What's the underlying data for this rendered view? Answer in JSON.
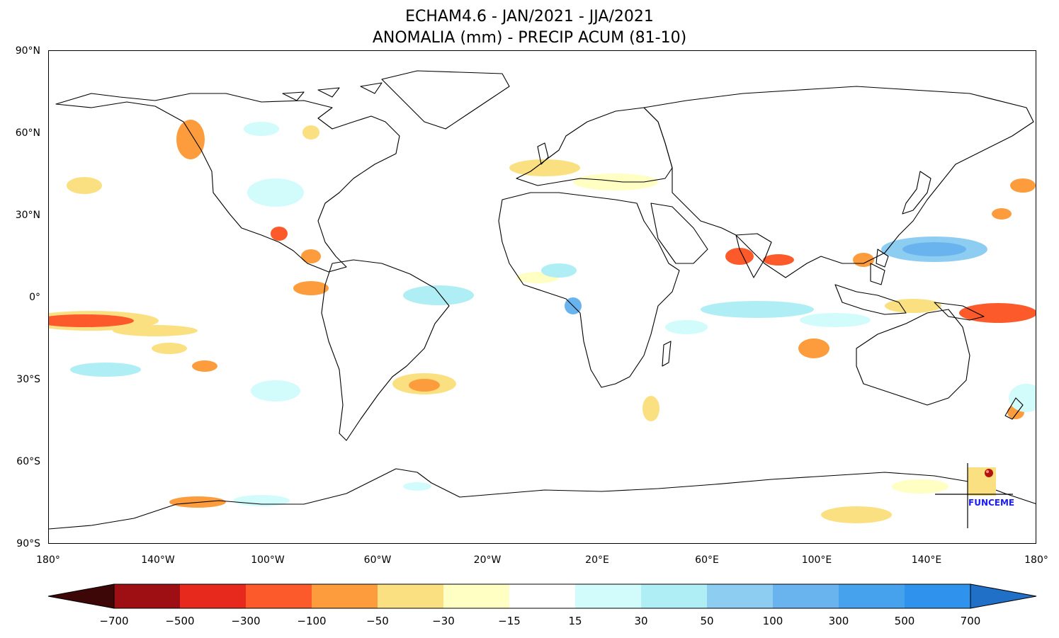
{
  "title_line1": "ECHAM4.6 - JAN/2021 - JJA/2021",
  "title_line2": "ANOMALIA (mm) - PRECIP ACUM (81-10)",
  "lat_labels": [
    "90°N",
    "60°N",
    "30°N",
    "0°",
    "30°S",
    "60°S",
    "90°S"
  ],
  "lon_labels": [
    "180°",
    "140°W",
    "100°W",
    "60°W",
    "20°W",
    "20°E",
    "60°E",
    "100°E",
    "140°E",
    "180°"
  ],
  "colorbar": {
    "labels": [
      "−700",
      "−500",
      "−300",
      "−100",
      "−50",
      "−30",
      "−15",
      "15",
      "30",
      "50",
      "100",
      "300",
      "500",
      "700"
    ],
    "colors": [
      "#9e0f13",
      "#e6291c",
      "#fc5a2a",
      "#fd9c3c",
      "#fbe082",
      "#ffffc4",
      "#ffffff",
      "#d2fbfb",
      "#aeeef4",
      "#8dcdf2",
      "#69b3ef",
      "#47a2ee",
      "#2f93ed"
    ],
    "low_extend_color": "#3d0708",
    "high_extend_color": "#2170c8"
  },
  "logo_text": "FUNCEME"
}
